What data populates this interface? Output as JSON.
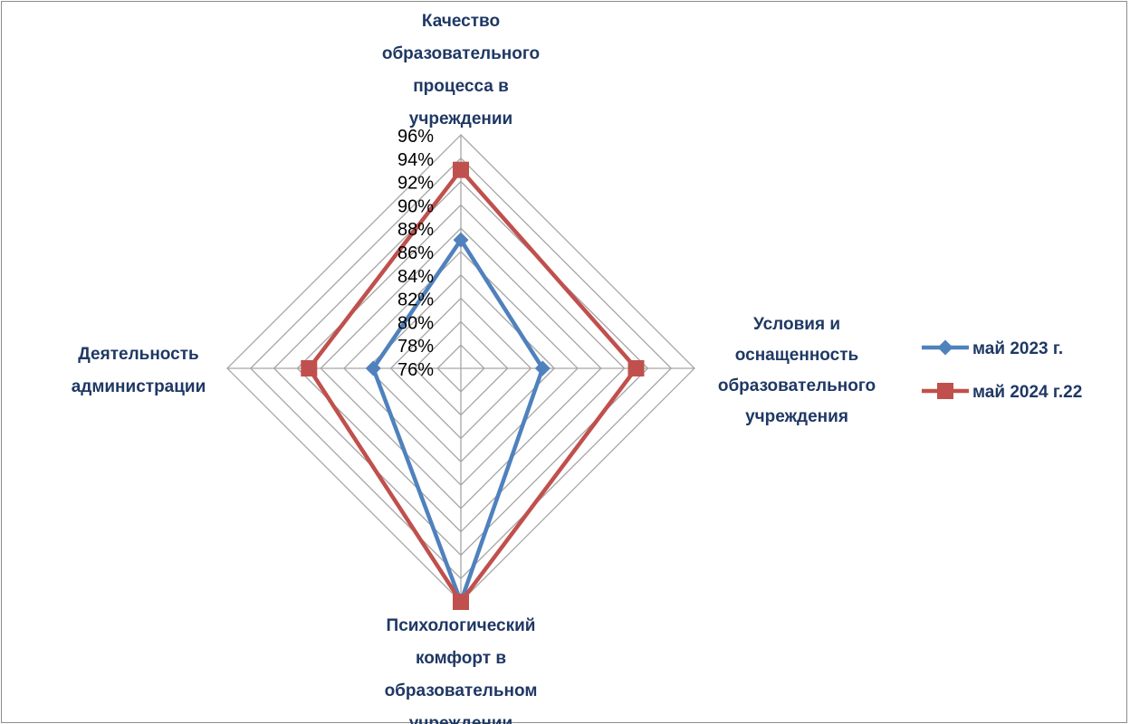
{
  "chart_data": {
    "type": "radar",
    "categories": [
      "Качество образовательного процесса  в учреждении",
      "Условия и оснащенность образовательного учреждения",
      "Психологический комфорт в образовательном учреждении",
      "Деятельность администрации"
    ],
    "category_lines": [
      [
        "Качество",
        "образовательного",
        "процесса  в",
        "учреждении"
      ],
      [
        "Условия и",
        "оснащенность",
        "образовательного",
        "учреждения"
      ],
      [
        "Психологический",
        "комфорт в",
        "образовательном",
        "учреждении"
      ],
      [
        "Деятельность",
        "администрации"
      ]
    ],
    "series": [
      {
        "name": "май 2023 г.",
        "values": [
          0.87,
          0.83,
          0.96,
          0.835
        ],
        "color": "#4f81bd",
        "marker": "diamond"
      },
      {
        "name": "май 2024 г.22",
        "values": [
          0.93,
          0.91,
          0.96,
          0.89
        ],
        "color": "#c0504d",
        "marker": "square"
      }
    ],
    "r_ticks": [
      "76%",
      "78%",
      "80%",
      "82%",
      "84%",
      "86%",
      "88%",
      "90%",
      "92%",
      "94%",
      "96%"
    ],
    "r_range": [
      0.76,
      0.96
    ],
    "grid": true,
    "gridline_color": "#a6a6a6",
    "legend_position": "right"
  }
}
